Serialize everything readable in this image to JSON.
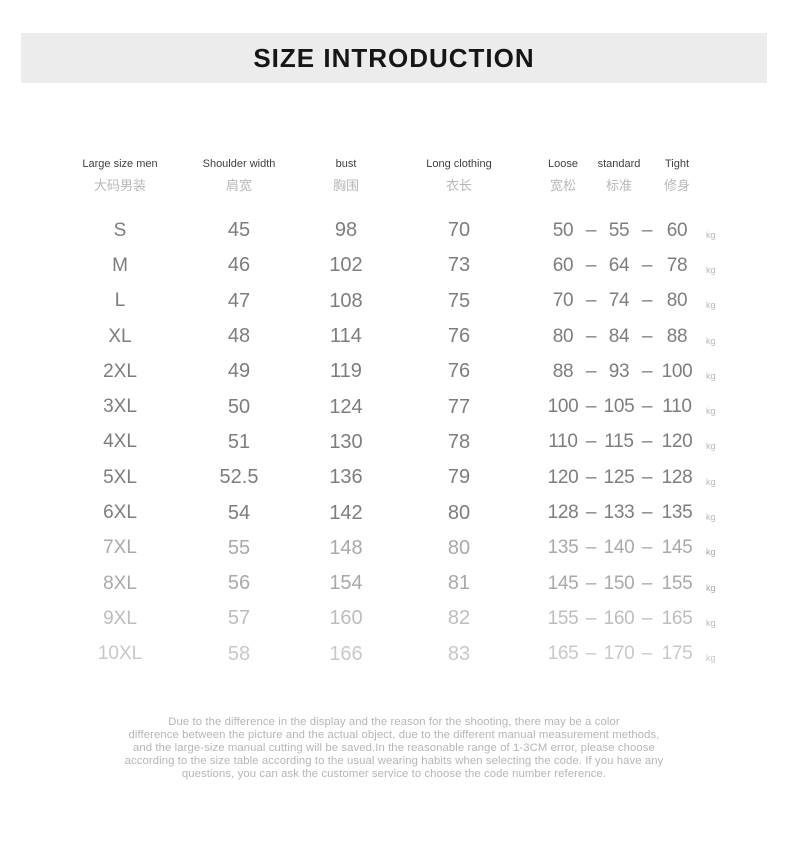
{
  "title": "SIZE INTRODUCTION",
  "dash": "–",
  "weight_unit": "kg",
  "colors": {
    "band_bg": "#ececec",
    "title": "#161616",
    "header_en": "#3f3f3f",
    "header_zh": "#b8b8b8",
    "row_normal": "#7d7d7d",
    "row_light": "#a9a9a9",
    "row_lighter": "#bdbdbd",
    "row_lightest": "#c8c8c8",
    "footer": "#b5b5b5"
  },
  "columns": {
    "size": {
      "en": "Large size men",
      "zh": "大码男装"
    },
    "shoulder": {
      "en": "Shoulder width",
      "zh": "肩宽"
    },
    "bust": {
      "en": "bust",
      "zh": "胸围"
    },
    "length": {
      "en": "Long clothing",
      "zh": "衣长"
    },
    "weight": {
      "loose": {
        "en": "Loose",
        "zh": "宽松"
      },
      "standard": {
        "en": "standard",
        "zh": "标准"
      },
      "tight": {
        "en": "Tight",
        "zh": "修身"
      }
    }
  },
  "table": {
    "rows": [
      {
        "size": "S",
        "shoulder": "45",
        "bust": "98",
        "length": "70",
        "loose": "50",
        "standard": "55",
        "tight": "60",
        "tone": "normal"
      },
      {
        "size": "M",
        "shoulder": "46",
        "bust": "102",
        "length": "73",
        "loose": "60",
        "standard": "64",
        "tight": "78",
        "tone": "normal"
      },
      {
        "size": "L",
        "shoulder": "47",
        "bust": "108",
        "length": "75",
        "loose": "70",
        "standard": "74",
        "tight": "80",
        "tone": "normal"
      },
      {
        "size": "XL",
        "shoulder": "48",
        "bust": "114",
        "length": "76",
        "loose": "80",
        "standard": "84",
        "tight": "88",
        "tone": "normal"
      },
      {
        "size": "2XL",
        "shoulder": "49",
        "bust": "119",
        "length": "76",
        "loose": "88",
        "standard": "93",
        "tight": "100",
        "tone": "normal"
      },
      {
        "size": "3XL",
        "shoulder": "50",
        "bust": "124",
        "length": "77",
        "loose": "100",
        "standard": "105",
        "tight": "110",
        "tone": "normal"
      },
      {
        "size": "4XL",
        "shoulder": "51",
        "bust": "130",
        "length": "78",
        "loose": "110",
        "standard": "115",
        "tight": "120",
        "tone": "normal"
      },
      {
        "size": "5XL",
        "shoulder": "52.5",
        "bust": "136",
        "length": "79",
        "loose": "120",
        "standard": "125",
        "tight": "128",
        "tone": "normal"
      },
      {
        "size": "6XL",
        "shoulder": "54",
        "bust": "142",
        "length": "80",
        "loose": "128",
        "standard": "133",
        "tight": "135",
        "tone": "normal"
      },
      {
        "size": "7XL",
        "shoulder": "55",
        "bust": "148",
        "length": "80",
        "loose": "135",
        "standard": "140",
        "tight": "145",
        "tone": "light"
      },
      {
        "size": "8XL",
        "shoulder": "56",
        "bust": "154",
        "length": "81",
        "loose": "145",
        "standard": "150",
        "tight": "155",
        "tone": "light"
      },
      {
        "size": "9XL",
        "shoulder": "57",
        "bust": "160",
        "length": "82",
        "loose": "155",
        "standard": "160",
        "tight": "165",
        "tone": "lighter"
      },
      {
        "size": "10XL",
        "shoulder": "58",
        "bust": "166",
        "length": "83",
        "loose": "165",
        "standard": "170",
        "tight": "175",
        "tone": "lightest"
      }
    ]
  },
  "footer": {
    "lines": [
      "Due to the difference in the display and the reason for the shooting, there may be a color",
      "difference between the picture and the actual object, due to the different manual measurement methods,",
      "and the large-size manual cutting will be saved.In the reasonable range of 1-3CM error, please choose",
      "according to the size table according to the usual wearing habits when selecting the code. If you have any",
      "questions, you can ask the customer service to choose the code number reference."
    ]
  }
}
